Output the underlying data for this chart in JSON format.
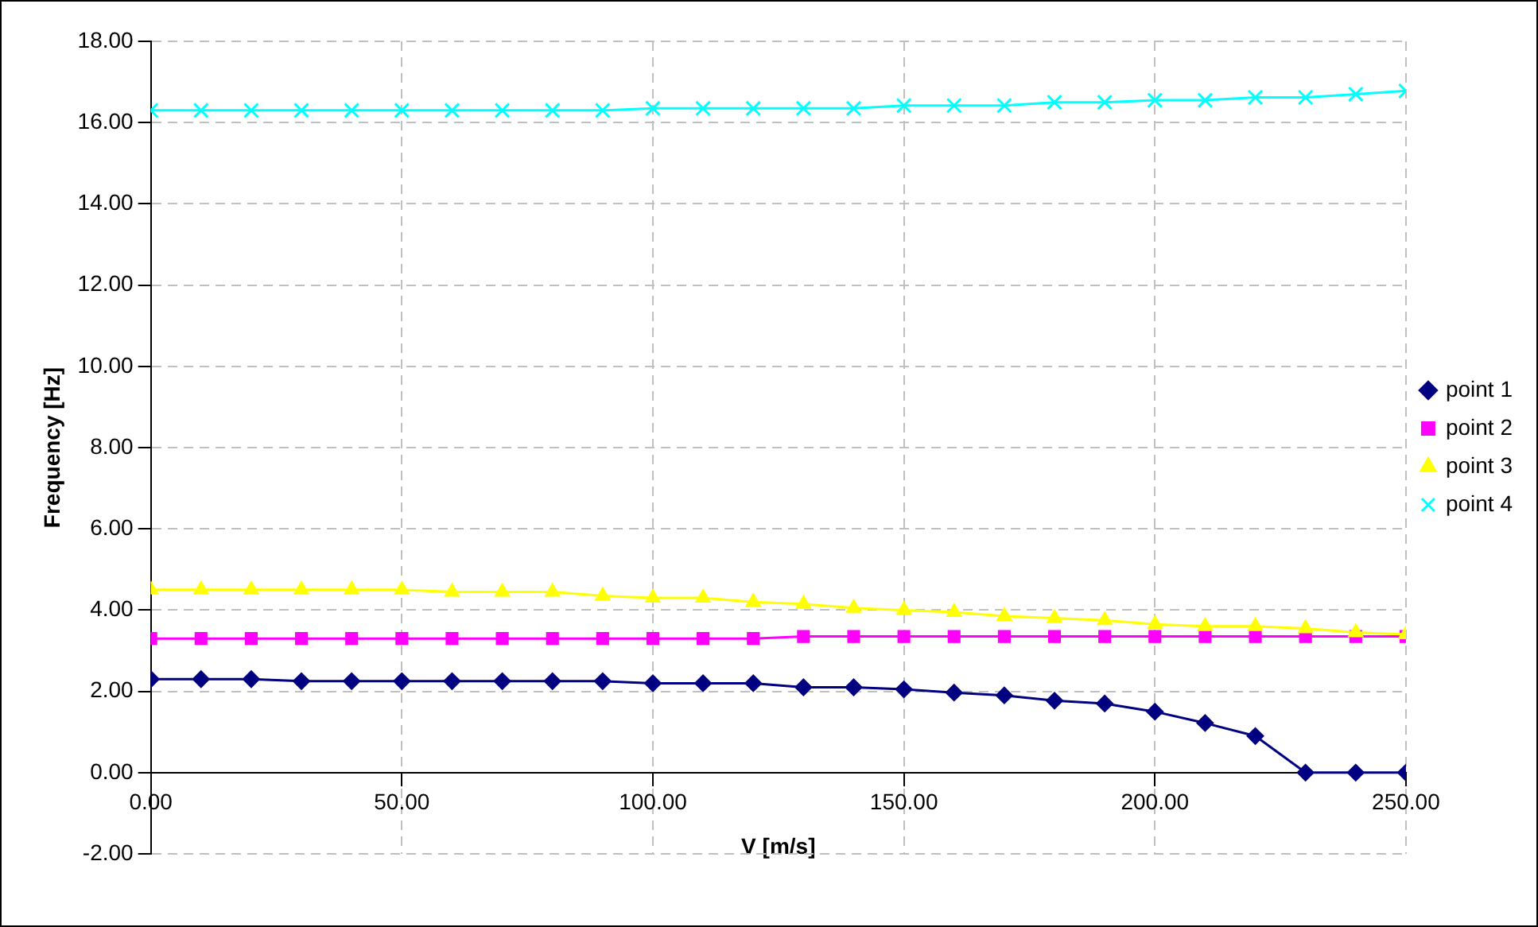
{
  "chart_data": {
    "type": "line",
    "xlabel": "V [m/s]",
    "ylabel": "Frequency [Hz]",
    "x": [
      0,
      10,
      20,
      30,
      40,
      50,
      60,
      70,
      80,
      90,
      100,
      110,
      120,
      130,
      140,
      150,
      160,
      170,
      180,
      190,
      200,
      210,
      220,
      230,
      240,
      250
    ],
    "series": [
      {
        "name": "point 1",
        "color": "#000080",
        "marker": "diamond",
        "values": [
          2.3,
          2.3,
          2.3,
          2.25,
          2.25,
          2.25,
          2.25,
          2.25,
          2.25,
          2.25,
          2.2,
          2.2,
          2.2,
          2.1,
          2.1,
          2.05,
          1.97,
          1.9,
          1.77,
          1.7,
          1.5,
          1.22,
          0.9,
          0,
          0,
          0
        ]
      },
      {
        "name": "point 2",
        "color": "#ff00ff",
        "marker": "square",
        "values": [
          3.3,
          3.3,
          3.3,
          3.3,
          3.3,
          3.3,
          3.3,
          3.3,
          3.3,
          3.3,
          3.3,
          3.3,
          3.3,
          3.35,
          3.35,
          3.35,
          3.35,
          3.35,
          3.35,
          3.35,
          3.35,
          3.35,
          3.35,
          3.35,
          3.35,
          3.35
        ]
      },
      {
        "name": "point 3",
        "color": "#ffff00",
        "marker": "triangle",
        "values": [
          4.5,
          4.5,
          4.5,
          4.5,
          4.5,
          4.5,
          4.45,
          4.45,
          4.45,
          4.35,
          4.3,
          4.3,
          4.2,
          4.15,
          4.05,
          4,
          3.95,
          3.85,
          3.8,
          3.75,
          3.65,
          3.6,
          3.6,
          3.55,
          3.45,
          3.4
        ]
      },
      {
        "name": "point 4",
        "color": "#00ffff",
        "marker": "cross",
        "values": [
          16.3,
          16.3,
          16.3,
          16.3,
          16.3,
          16.3,
          16.3,
          16.3,
          16.3,
          16.3,
          16.35,
          16.35,
          16.35,
          16.35,
          16.35,
          16.42,
          16.42,
          16.42,
          16.5,
          16.5,
          16.55,
          16.55,
          16.62,
          16.62,
          16.7,
          16.78
        ]
      }
    ],
    "xlim": [
      0,
      250
    ],
    "xticks": [
      {
        "value": 0,
        "label": "0.00"
      },
      {
        "value": 50,
        "label": "50.00"
      },
      {
        "value": 100,
        "label": "100.00"
      },
      {
        "value": 150,
        "label": "150.00"
      },
      {
        "value": 200,
        "label": "200.00"
      },
      {
        "value": 250,
        "label": "250.00"
      }
    ],
    "ylim": [
      -2,
      18
    ],
    "yticks": [
      {
        "value": -2,
        "label": "-2.00"
      },
      {
        "value": 0,
        "label": "0.00"
      },
      {
        "value": 2,
        "label": "2.00"
      },
      {
        "value": 4,
        "label": "4.00"
      },
      {
        "value": 6,
        "label": "6.00"
      },
      {
        "value": 8,
        "label": "8.00"
      },
      {
        "value": 10,
        "label": "10.00"
      },
      {
        "value": 12,
        "label": "12.00"
      },
      {
        "value": 14,
        "label": "14.00"
      },
      {
        "value": 16,
        "label": "16.00"
      },
      {
        "value": 18,
        "label": "18.00"
      }
    ],
    "grid": true,
    "legend": "right",
    "line_style": "solid"
  }
}
